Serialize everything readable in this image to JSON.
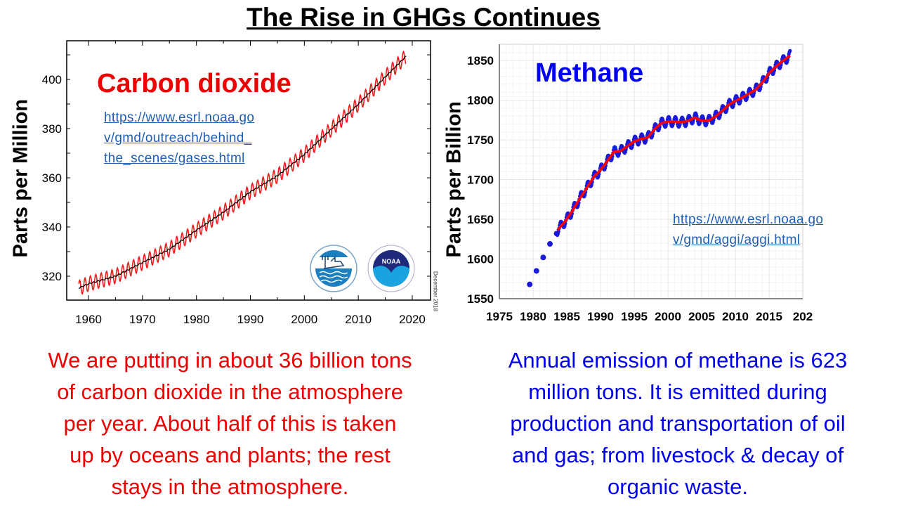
{
  "title": "The Rise in GHGs Continues",
  "colors": {
    "co2_text": "#ee0000",
    "ch4_text": "#0000ee",
    "link": "#1f5fb4",
    "co2_monthly": "#ee1c1c",
    "co2_trend": "#000000",
    "ch4_monthly": "#1a1adc",
    "ch4_trend": "#ff0000"
  },
  "chart_data": [
    {
      "type": "line",
      "title": "Carbon dioxide",
      "ylabel": "Parts per Million",
      "xlabel": "",
      "xlim": [
        1958,
        2019
      ],
      "ylim": [
        311,
        412
      ],
      "xticks": [
        1960,
        1970,
        1980,
        1990,
        2000,
        2010,
        2020
      ],
      "yticks": [
        320,
        340,
        360,
        380,
        400
      ],
      "grid": false,
      "annotation_link": [
        "https://www.esrl.noaa.go",
        "v/gmd/outreach/behind_",
        "the_scenes/gases.html"
      ],
      "side_note": "December 2018",
      "logos": [
        "Scripps Institution of Oceanography UCSD",
        "NOAA"
      ],
      "series": [
        {
          "kind": "monthly-seasonal",
          "seasonal_amplitude_ppm": 3.0
        },
        {
          "kind": "trend",
          "x": [
            1958,
            1960,
            1965,
            1970,
            1975,
            1980,
            1985,
            1990,
            1995,
            2000,
            2005,
            2010,
            2015,
            2018.9
          ],
          "y": [
            315.0,
            316.9,
            320.0,
            325.5,
            331.0,
            338.7,
            346.0,
            354.3,
            360.8,
            369.5,
            379.8,
            389.9,
            401.0,
            409.5
          ]
        }
      ]
    },
    {
      "type": "line",
      "title": "Methane",
      "ylabel": "Parts per Billion",
      "xlabel": "",
      "xlim": [
        1975,
        2020
      ],
      "ylim": [
        1550,
        1865
      ],
      "xticks": [
        "1975",
        "1980",
        "1985",
        "1990",
        "1995",
        "2000",
        "2005",
        "2010",
        "2015",
        "202"
      ],
      "yticks": [
        1550,
        1600,
        1650,
        1700,
        1750,
        1800,
        1850
      ],
      "grid": true,
      "annotation_link": [
        "https://www.esrl.noaa.go",
        "v/gmd/aggi/aggi.html"
      ],
      "series": [
        {
          "kind": "early-annual",
          "x": [
            1979.5,
            1980.5,
            1981.5,
            1982.5,
            1983.5
          ],
          "y": [
            1568,
            1585,
            1602,
            1619,
            1632
          ]
        },
        {
          "kind": "monthly-seasonal",
          "seasonal_amplitude_ppb": 6
        },
        {
          "kind": "trend",
          "x": [
            1983.6,
            1985,
            1986,
            1987,
            1988,
            1989,
            1990,
            1991,
            1992,
            1993,
            1994,
            1995,
            1996,
            1997,
            1998,
            1999,
            2000,
            2001,
            2002,
            2003,
            2004,
            2005,
            2006,
            2007,
            2008,
            2009,
            2010,
            2011,
            2012,
            2013,
            2014,
            2015,
            2016,
            2017,
            2018.1
          ],
          "y": [
            1636,
            1650,
            1663,
            1677,
            1690,
            1703,
            1712,
            1723,
            1735,
            1736,
            1742,
            1748,
            1751,
            1753,
            1763,
            1771,
            1773,
            1773,
            1772,
            1774,
            1778,
            1774,
            1774,
            1779,
            1786,
            1794,
            1799,
            1803,
            1808,
            1813,
            1822,
            1834,
            1842,
            1849,
            1856
          ]
        }
      ]
    }
  ],
  "co2_text": [
    "We are putting in about 36 billion tons",
    "of carbon dioxide in the atmosphere",
    "per year.  About half of this is taken",
    "up by oceans and plants; the rest",
    "stays in the atmosphere."
  ],
  "ch4_text": [
    "Annual emission of methane is 623",
    "million tons. It is emitted during",
    "production and transportation of oil",
    "and gas; from livestock & decay of",
    "organic waste."
  ]
}
